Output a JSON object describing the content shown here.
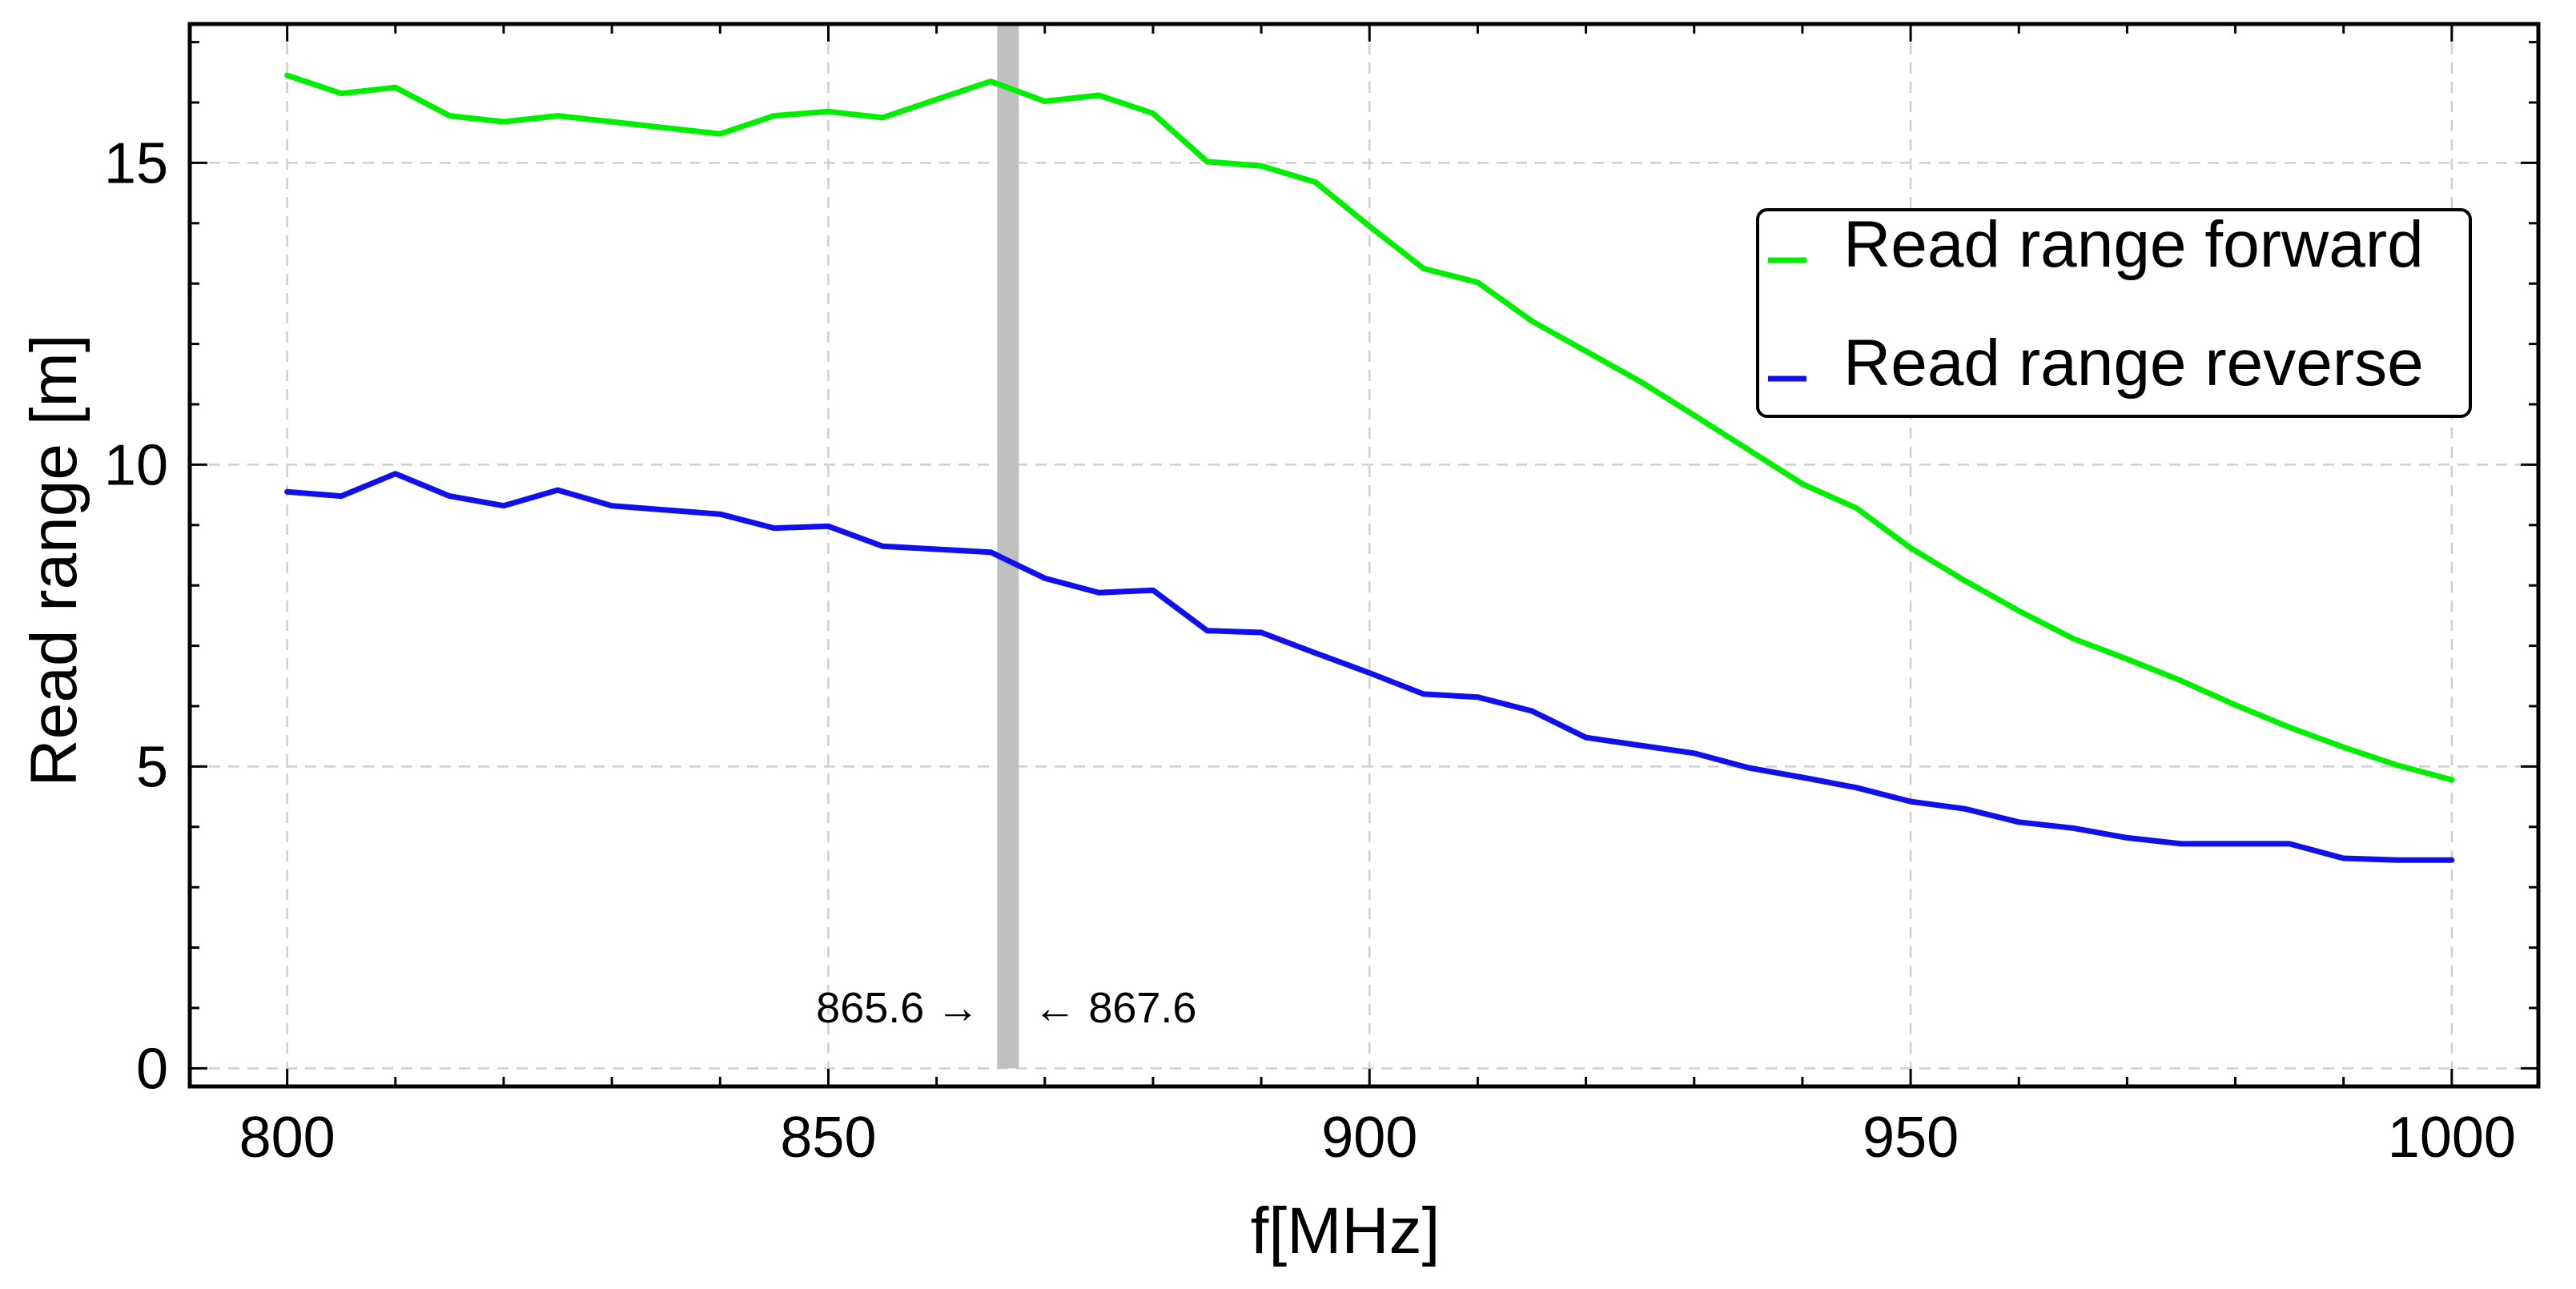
{
  "chart_data": {
    "type": "line",
    "xlabel": "f[MHz]",
    "ylabel": "Read range [m]",
    "xlim": [
      791,
      1008
    ],
    "ylim": [
      -0.3,
      17.3
    ],
    "xticks": [
      800,
      850,
      900,
      950,
      1000
    ],
    "yticks": [
      0,
      5,
      10,
      15
    ],
    "grid": true,
    "legend_position": "top-right",
    "x": [
      800,
      805,
      810,
      815,
      820,
      825,
      830,
      835,
      840,
      845,
      850,
      855,
      860,
      865,
      870,
      875,
      880,
      885,
      890,
      895,
      900,
      905,
      910,
      915,
      920,
      925,
      930,
      935,
      940,
      945,
      950,
      955,
      960,
      965,
      970,
      975,
      980,
      985,
      990,
      995,
      1000
    ],
    "series": [
      {
        "name": "Read range forward",
        "color": "#00ee00",
        "values": [
          16.45,
          16.15,
          16.25,
          15.78,
          15.68,
          15.78,
          15.68,
          15.58,
          15.48,
          15.78,
          15.85,
          15.75,
          16.05,
          16.35,
          16.02,
          16.12,
          15.82,
          15.02,
          14.95,
          14.68,
          13.95,
          13.25,
          13.02,
          12.38,
          11.88,
          11.38,
          10.82,
          10.25,
          9.68,
          9.28,
          8.62,
          8.08,
          7.58,
          7.12,
          6.78,
          6.42,
          6.02,
          5.65,
          5.32,
          5.02,
          4.78
        ]
      },
      {
        "name": "Read range reverse",
        "color": "#1010ee",
        "values": [
          9.55,
          9.48,
          9.85,
          9.48,
          9.32,
          9.58,
          9.32,
          9.25,
          9.18,
          8.95,
          8.98,
          8.65,
          8.6,
          8.55,
          8.12,
          7.88,
          7.92,
          7.25,
          7.22,
          6.88,
          6.55,
          6.2,
          6.15,
          5.92,
          5.48,
          5.35,
          5.22,
          4.98,
          4.82,
          4.65,
          4.42,
          4.3,
          4.08,
          3.98,
          3.82,
          3.72,
          3.72,
          3.72,
          3.48,
          3.45,
          3.45
        ]
      }
    ],
    "band": {
      "x_start": 865.6,
      "x_end": 867.6,
      "color": "#c0c0c0",
      "label_left": "865.6 →",
      "label_right": "← 867.6",
      "label_y": 1.0
    }
  }
}
